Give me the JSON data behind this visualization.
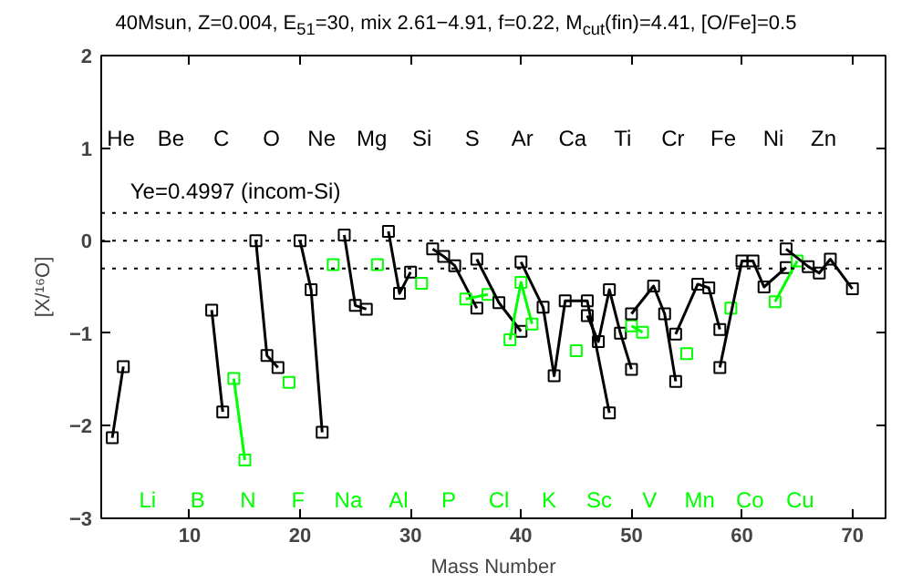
{
  "chart_data": {
    "type": "line",
    "title": "40Msun, Z=0.004, E$_{51}$=30, mix 2.61−4.91, f=0.22, M$_{cut}$(fin)=4.41, [O/Fe]=0.5",
    "xlabel": "Mass Number",
    "ylabel": "[X/¹⁶O]",
    "xlim": [
      2,
      73
    ],
    "ylim": [
      -3,
      2
    ],
    "xticks": [
      10,
      20,
      30,
      40,
      50,
      60,
      70
    ],
    "yticks": [
      -3,
      -2,
      -1,
      0,
      1,
      2
    ],
    "grid": false,
    "marker": "square",
    "line_style": "solid",
    "series": [
      {
        "color": "#000000",
        "x": [
          3,
          4
        ],
        "values": [
          -2.13,
          -1.36
        ]
      },
      {
        "color": "#000000",
        "x": [
          12,
          13
        ],
        "values": [
          -0.75,
          -1.85
        ]
      },
      {
        "color": "#00ff00",
        "x": [
          14,
          15
        ],
        "values": [
          -1.49,
          -2.37
        ]
      },
      {
        "color": "#000000",
        "x": [
          16,
          17,
          18
        ],
        "values": [
          0,
          -1.24,
          -1.37
        ]
      },
      {
        "color": "#00ff00",
        "x": [
          19
        ],
        "values": [
          -1.53
        ]
      },
      {
        "color": "#000000",
        "x": [
          20,
          21,
          22
        ],
        "values": [
          0,
          -0.53,
          -2.07
        ]
      },
      {
        "color": "#00ff00",
        "x": [
          23
        ],
        "values": [
          -0.26
        ]
      },
      {
        "color": "#000000",
        "x": [
          24,
          25,
          26
        ],
        "values": [
          0.06,
          -0.7,
          -0.74
        ]
      },
      {
        "color": "#00ff00",
        "x": [
          27
        ],
        "values": [
          -0.26
        ]
      },
      {
        "color": "#000000",
        "x": [
          28,
          29,
          30
        ],
        "values": [
          0.1,
          -0.57,
          -0.34
        ]
      },
      {
        "color": "#00ff00",
        "x": [
          31
        ],
        "values": [
          -0.46
        ]
      },
      {
        "color": "#000000",
        "x": [
          32,
          33,
          34,
          36
        ],
        "values": [
          -0.09,
          -0.17,
          -0.27,
          -0.73
        ]
      },
      {
        "color": "#00ff00",
        "x": [
          35,
          37
        ],
        "values": [
          -0.63,
          -0.58
        ]
      },
      {
        "color": "#000000",
        "x": [
          36,
          38,
          40
        ],
        "values": [
          -0.2,
          -0.67,
          -0.98
        ]
      },
      {
        "color": "#00ff00",
        "x": [
          39,
          40,
          41
        ],
        "values": [
          -1.07,
          -0.45,
          -0.9
        ]
      },
      {
        "color": "#000000",
        "x": [
          40,
          42,
          43,
          44,
          46,
          48
        ],
        "values": [
          -0.23,
          -0.72,
          -1.46,
          -0.65,
          -0.65,
          -1.86
        ]
      },
      {
        "color": "#00ff00",
        "x": [
          45
        ],
        "values": [
          -1.19
        ]
      },
      {
        "color": "#000000",
        "x": [
          46,
          47,
          48,
          49,
          50
        ],
        "values": [
          -0.81,
          -1.09,
          -0.53,
          -1.0,
          -1.39
        ]
      },
      {
        "color": "#00ff00",
        "x": [
          50,
          51
        ],
        "values": [
          -0.92,
          -0.99
        ]
      },
      {
        "color": "#000000",
        "x": [
          50,
          52,
          53,
          54
        ],
        "values": [
          -0.79,
          -0.49,
          -0.79,
          -1.52
        ]
      },
      {
        "color": "#00ff00",
        "x": [
          55
        ],
        "values": [
          -1.22
        ]
      },
      {
        "color": "#000000",
        "x": [
          54,
          56,
          57,
          58
        ],
        "values": [
          -1.01,
          -0.47,
          -0.51,
          -0.96
        ]
      },
      {
        "color": "#00ff00",
        "x": [
          59
        ],
        "values": [
          -0.73
        ]
      },
      {
        "color": "#000000",
        "x": [
          58,
          60,
          61,
          62,
          64
        ],
        "values": [
          -1.37,
          -0.22,
          -0.22,
          -0.5,
          -0.29
        ]
      },
      {
        "color": "#00ff00",
        "x": [
          63,
          65
        ],
        "values": [
          -0.66,
          -0.22
        ]
      },
      {
        "color": "#000000",
        "x": [
          64,
          66,
          67,
          68,
          70
        ],
        "values": [
          -0.09,
          -0.28,
          -0.35,
          -0.2,
          -0.52
        ]
      }
    ],
    "ref_lines": [
      {
        "axis": "y",
        "value": 0.3,
        "color": "#000000",
        "line_style": "dotted"
      },
      {
        "axis": "y",
        "value": 0,
        "color": "#000000",
        "line_style": "dotted"
      },
      {
        "axis": "y",
        "value": -0.3,
        "color": "#000000",
        "line_style": "dotted"
      }
    ],
    "annotations": [
      "Ye=0.4997 (incom-Si)",
      "He",
      "Be",
      "C",
      "O",
      "Ne",
      "Mg",
      "Si",
      "S",
      "Ar",
      "Ca",
      "Ti",
      "Cr",
      "Fe",
      "Ni",
      "Zn",
      "Li",
      "B",
      "N",
      "F",
      "Na",
      "Al",
      "P",
      "Cl",
      "K",
      "Sc",
      "V",
      "Mn",
      "Co",
      "Cu"
    ]
  }
}
